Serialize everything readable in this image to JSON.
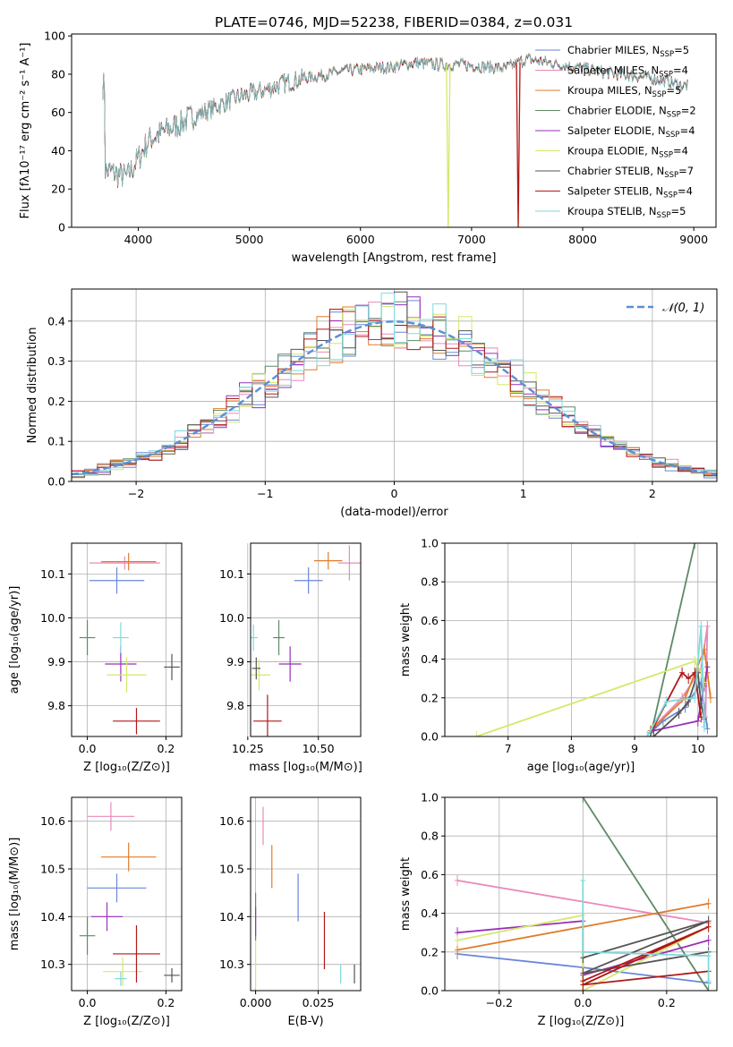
{
  "colors": {
    "chabrier_miles": "#6a87d8",
    "salpeter_miles": "#e88ab8",
    "kroupa_miles": "#e07c2a",
    "chabrier_elodie": "#5e8a65",
    "salpeter_elodie": "#9a2fb8",
    "kroupa_elodie": "#d4e86a",
    "chabrier_stelib": "#555555",
    "salpeter_stelib": "#b01818",
    "kroupa_stelib": "#7dd9dc",
    "gaussian": "#5b8fd6",
    "grid": "#b0b0b0"
  },
  "chart_data": [
    {
      "id": "spectrum",
      "type": "line",
      "title": "PLATE=0746, MJD=52238, FIBERID=0384, z=0.031",
      "xlabel": "wavelength [Angstrom, rest frame]",
      "ylabel": "Flux [fλ10⁻¹⁷ erg cm⁻² s⁻¹ A⁻¹]",
      "xlim": [
        3400,
        9200
      ],
      "ylim": [
        0,
        101
      ],
      "xticks": [
        4000,
        5000,
        6000,
        7000,
        8000,
        9000
      ],
      "yticks": [
        0,
        20,
        40,
        60,
        80,
        100
      ],
      "continuum": [
        [
          3700,
          30
        ],
        [
          3900,
          26
        ],
        [
          4000,
          36
        ],
        [
          4100,
          46
        ],
        [
          4300,
          52
        ],
        [
          4500,
          58
        ],
        [
          4700,
          63
        ],
        [
          4900,
          68
        ],
        [
          5100,
          71
        ],
        [
          5300,
          75
        ],
        [
          5500,
          78
        ],
        [
          5700,
          80
        ],
        [
          5900,
          82
        ],
        [
          6100,
          83
        ],
        [
          6300,
          84
        ],
        [
          6500,
          86
        ],
        [
          6700,
          85
        ],
        [
          6900,
          85
        ],
        [
          7100,
          84
        ],
        [
          7300,
          83
        ],
        [
          7500,
          88
        ],
        [
          7700,
          86
        ],
        [
          7900,
          84
        ],
        [
          8100,
          82
        ],
        [
          8300,
          80
        ],
        [
          8500,
          79
        ],
        [
          8700,
          77
        ],
        [
          8900,
          74
        ]
      ],
      "dropouts": [
        {
          "series": "Kroupa ELODIE",
          "x": 6790
        },
        {
          "series": "Salpeter STELIB",
          "x": 7420
        }
      ],
      "legend": [
        {
          "label": "Chabrier MILES, N",
          "sub": "SSP",
          "value": "=5",
          "color": "#6a87d8"
        },
        {
          "label": "Salpeter MILES, N",
          "sub": "SSP",
          "value": "=4",
          "color": "#e88ab8"
        },
        {
          "label": "Kroupa MILES, N",
          "sub": "SSP",
          "value": "=5",
          "color": "#e07c2a"
        },
        {
          "label": "Chabrier ELODIE, N",
          "sub": "SSP",
          "value": "=2",
          "color": "#5e8a65"
        },
        {
          "label": "Salpeter ELODIE, N",
          "sub": "SSP",
          "value": "=4",
          "color": "#9a2fb8"
        },
        {
          "label": "Kroupa ELODIE, N",
          "sub": "SSP",
          "value": "=4",
          "color": "#d4e86a"
        },
        {
          "label": "Chabrier STELIB, N",
          "sub": "SSP",
          "value": "=7",
          "color": "#555555"
        },
        {
          "label": "Salpeter STELIB, N",
          "sub": "SSP",
          "value": "=4",
          "color": "#b01818"
        },
        {
          "label": "Kroupa STELIB, N",
          "sub": "SSP",
          "value": "=5",
          "color": "#7dd9dc"
        }
      ]
    },
    {
      "id": "residuals",
      "type": "histogram",
      "xlabel": "(data-model)/error",
      "ylabel": "Normed distribution",
      "xlim": [
        -2.5,
        2.5
      ],
      "ylim": [
        0,
        0.48
      ],
      "xticks": [
        -2,
        -1,
        0,
        1,
        2
      ],
      "yticks": [
        0.0,
        0.1,
        0.2,
        0.3,
        0.4
      ],
      "grid": true,
      "legend": "$\\mathcal{N}(0, 1)$",
      "legend_text": "𝒩(0, 1)",
      "bins": 50
    },
    {
      "id": "age_vs_Z",
      "type": "errorbar",
      "xlabel": "Z [log₁₀(Z/Z⊙)]",
      "ylabel": "age  [log₁₀(age/yr)]",
      "xlim": [
        -0.04,
        0.24
      ],
      "ylim": [
        9.73,
        10.17
      ],
      "xticks": [
        0.0,
        0.2
      ],
      "yticks": [
        9.8,
        9.9,
        10.0,
        10.1
      ],
      "points": [
        {
          "series": "Chabrier MILES",
          "x": 0.075,
          "xerr": 0.07,
          "y": 10.085,
          "yerr": 0.03
        },
        {
          "series": "Salpeter MILES",
          "x": 0.095,
          "xerr": 0.09,
          "y": 10.125,
          "yerr": 0.015
        },
        {
          "series": "Kroupa MILES",
          "x": 0.105,
          "xerr": 0.07,
          "y": 10.128,
          "yerr": 0.02
        },
        {
          "series": "Chabrier ELODIE",
          "x": 0.0,
          "xerr": 0.02,
          "y": 9.955,
          "yerr": 0.04
        },
        {
          "series": "Salpeter ELODIE",
          "x": 0.085,
          "xerr": 0.04,
          "y": 9.895,
          "yerr": 0.04
        },
        {
          "series": "Kroupa ELODIE",
          "x": 0.1,
          "xerr": 0.05,
          "y": 9.87,
          "yerr": 0.04
        },
        {
          "series": "Chabrier STELIB",
          "x": 0.215,
          "xerr": 0.02,
          "y": 9.888,
          "yerr": 0.03
        },
        {
          "series": "Salpeter STELIB",
          "x": 0.125,
          "xerr": 0.06,
          "y": 9.765,
          "yerr": 0.03
        },
        {
          "series": "Kroupa STELIB",
          "x": 0.085,
          "xerr": 0.02,
          "y": 9.955,
          "yerr": 0.035
        }
      ]
    },
    {
      "id": "age_vs_mass",
      "type": "errorbar",
      "xlabel": "mass [log₁₀(M/M⊙)]",
      "xlim": [
        10.26,
        10.65
      ],
      "ylim": [
        9.73,
        10.17
      ],
      "xticks": [
        10.25,
        10.5
      ],
      "yticks": [
        9.8,
        9.9,
        10.0,
        10.1
      ],
      "points": [
        {
          "series": "Chabrier MILES",
          "x": 10.465,
          "xerr": 0.05,
          "y": 10.085,
          "yerr": 0.03
        },
        {
          "series": "Salpeter MILES",
          "x": 10.61,
          "xerr": 0.04,
          "y": 10.125,
          "yerr": 0.04
        },
        {
          "series": "Kroupa MILES",
          "x": 10.535,
          "xerr": 0.05,
          "y": 10.13,
          "yerr": 0.02
        },
        {
          "series": "Chabrier ELODIE",
          "x": 10.36,
          "xerr": 0.02,
          "y": 9.955,
          "yerr": 0.04
        },
        {
          "series": "Salpeter ELODIE",
          "x": 10.4,
          "xerr": 0.04,
          "y": 9.895,
          "yerr": 0.04
        },
        {
          "series": "Kroupa ELODIE",
          "x": 10.29,
          "xerr": 0.04,
          "y": 9.87,
          "yerr": 0.035
        },
        {
          "series": "Chabrier STELIB",
          "x": 10.28,
          "xerr": 0.015,
          "y": 9.885,
          "yerr": 0.025
        },
        {
          "series": "Salpeter STELIB",
          "x": 10.32,
          "xerr": 0.05,
          "y": 9.765,
          "yerr": 0.06
        },
        {
          "series": "Kroupa STELIB",
          "x": 10.27,
          "xerr": 0.015,
          "y": 9.955,
          "yerr": 0.03
        }
      ]
    },
    {
      "id": "weight_vs_age",
      "type": "line",
      "xlabel": "age  [log₁₀(age/yr)]",
      "ylabel": "mass weight",
      "xlim": [
        6.0,
        10.3
      ],
      "ylim": [
        0,
        1.0
      ],
      "xticks": [
        7,
        8,
        9,
        10
      ],
      "yticks": [
        0.0,
        0.2,
        0.4,
        0.6,
        0.8,
        1.0
      ],
      "series": [
        {
          "name": "Chabrier MILES",
          "points": [
            [
              9.25,
              0.02
            ],
            [
              9.45,
              0.08
            ],
            [
              9.8,
              0.15
            ],
            [
              10.05,
              0.28
            ],
            [
              10.15,
              0.04
            ]
          ]
        },
        {
          "name": "Salpeter MILES",
          "points": [
            [
              9.3,
              0.05
            ],
            [
              9.75,
              0.2
            ],
            [
              10.05,
              0.35
            ],
            [
              10.15,
              0.57
            ],
            [
              10.12,
              0.1
            ]
          ]
        },
        {
          "name": "Kroupa MILES",
          "points": [
            [
              9.25,
              0.03
            ],
            [
              9.8,
              0.2
            ],
            [
              10.1,
              0.45
            ],
            [
              10.15,
              0.33
            ],
            [
              10.2,
              0.2
            ]
          ]
        },
        {
          "name": "Chabrier ELODIE",
          "points": [
            [
              9.25,
              0.0
            ],
            [
              9.95,
              1.0
            ]
          ]
        },
        {
          "name": "Salpeter ELODIE",
          "points": [
            [
              9.3,
              0.03
            ],
            [
              10.0,
              0.08
            ],
            [
              10.1,
              0.26
            ],
            [
              10.15,
              0.36
            ]
          ]
        },
        {
          "name": "Kroupa ELODIE",
          "points": [
            [
              6.5,
              0.0
            ],
            [
              9.95,
              0.39
            ],
            [
              10.05,
              0.33
            ],
            [
              10.1,
              0.28
            ]
          ]
        },
        {
          "name": "Chabrier STELIB",
          "points": [
            [
              9.3,
              0.0
            ],
            [
              9.7,
              0.12
            ],
            [
              9.85,
              0.18
            ],
            [
              10.0,
              0.33
            ],
            [
              10.05,
              0.17
            ],
            [
              10.1,
              0.09
            ]
          ]
        },
        {
          "name": "Salpeter STELIB",
          "points": [
            [
              9.3,
              0.05
            ],
            [
              9.75,
              0.33
            ],
            [
              9.85,
              0.3
            ],
            [
              9.95,
              0.33
            ],
            [
              10.05,
              0.1
            ]
          ]
        },
        {
          "name": "Kroupa STELIB",
          "points": [
            [
              9.2,
              0.0
            ],
            [
              9.5,
              0.18
            ],
            [
              9.95,
              0.2
            ],
            [
              10.05,
              0.57
            ],
            [
              10.1,
              0.05
            ]
          ]
        }
      ]
    },
    {
      "id": "mass_vs_Z",
      "type": "errorbar",
      "xlabel": "Z [log₁₀(Z/Z⊙)]",
      "ylabel": "mass [log₁₀(M/M⊙)]",
      "xlim": [
        -0.04,
        0.24
      ],
      "ylim": [
        10.245,
        10.65
      ],
      "xticks": [
        0.0,
        0.2
      ],
      "yticks": [
        10.3,
        10.4,
        10.5,
        10.6
      ],
      "points": [
        {
          "series": "Chabrier MILES",
          "x": 0.075,
          "xerr": 0.075,
          "y": 10.46,
          "yerr": 0.03
        },
        {
          "series": "Salpeter MILES",
          "x": 0.06,
          "xerr": 0.06,
          "y": 10.61,
          "yerr": 0.03
        },
        {
          "series": "Kroupa MILES",
          "x": 0.105,
          "xerr": 0.07,
          "y": 10.525,
          "yerr": 0.03
        },
        {
          "series": "Chabrier ELODIE",
          "x": 0.0,
          "xerr": 0.02,
          "y": 10.36,
          "yerr": 0.04
        },
        {
          "series": "Salpeter ELODIE",
          "x": 0.05,
          "xerr": 0.04,
          "y": 10.4,
          "yerr": 0.03
        },
        {
          "series": "Kroupa ELODIE",
          "x": 0.09,
          "xerr": 0.05,
          "y": 10.285,
          "yerr": 0.03
        },
        {
          "series": "Chabrier STELIB",
          "x": 0.215,
          "xerr": 0.02,
          "y": 10.277,
          "yerr": 0.015
        },
        {
          "series": "Salpeter STELIB",
          "x": 0.125,
          "xerr": 0.06,
          "y": 10.322,
          "yerr": 0.06
        },
        {
          "series": "Kroupa STELIB",
          "x": 0.085,
          "xerr": 0.015,
          "y": 10.27,
          "yerr": 0.015
        }
      ]
    },
    {
      "id": "mass_vs_ebv",
      "type": "errorbar",
      "xlabel": "E(B-V)",
      "xlim": [
        -0.002,
        0.042
      ],
      "ylim": [
        10.245,
        10.65
      ],
      "xticks": [
        0.0,
        0.025
      ],
      "yticks": [
        10.3,
        10.4,
        10.5,
        10.6
      ],
      "points": [
        {
          "series": "Chabrier MILES",
          "x": 0.017,
          "xerr": 0.0,
          "y": 10.44,
          "yerr": 0.05
        },
        {
          "series": "Salpeter MILES",
          "x": 0.003,
          "xerr": 0.0,
          "y": 10.59,
          "yerr": 0.04
        },
        {
          "series": "Kroupa MILES",
          "x": 0.0065,
          "xerr": 0.0,
          "y": 10.505,
          "yerr": 0.045
        },
        {
          "series": "Chabrier ELODIE",
          "x": 0.0,
          "xerr": 0.0,
          "y": 10.4,
          "yerr": 0.05
        },
        {
          "series": "Salpeter ELODIE",
          "x": 0.0,
          "xerr": 0.0,
          "y": 10.39,
          "yerr": 0.03
        },
        {
          "series": "Kroupa ELODIE",
          "x": 0.0,
          "xerr": 0.0,
          "y": 10.3,
          "yerr": 0.05
        },
        {
          "series": "Chabrier STELIB",
          "x": 0.0395,
          "xerr": 0.0,
          "y": 10.28,
          "yerr": 0.02
        },
        {
          "series": "Salpeter STELIB",
          "x": 0.0275,
          "xerr": 0.0,
          "y": 10.35,
          "yerr": 0.06
        },
        {
          "series": "Kroupa STELIB",
          "x": 0.034,
          "xerr": 0.0,
          "y": 10.28,
          "yerr": 0.02
        }
      ]
    },
    {
      "id": "weight_vs_Z",
      "type": "line",
      "xlabel": "Z [log₁₀(Z/Z⊙)]",
      "ylabel": "mass weight",
      "xlim": [
        -0.33,
        0.32
      ],
      "ylim": [
        0,
        1.0
      ],
      "xticks": [
        -0.2,
        0.0,
        0.2
      ],
      "yticks": [
        0.0,
        0.2,
        0.4,
        0.6,
        0.8,
        1.0
      ],
      "series": [
        {
          "name": "Chabrier MILES",
          "points": [
            [
              -0.3,
              0.19
            ],
            [
              0.0,
              0.12
            ],
            [
              0.3,
              0.04
            ]
          ]
        },
        {
          "name": "Salpeter MILES",
          "points": [
            [
              -0.3,
              0.57
            ],
            [
              0.3,
              0.35
            ]
          ]
        },
        {
          "name": "Kroupa MILES",
          "points": [
            [
              -0.3,
              0.21
            ],
            [
              0.0,
              0.33
            ],
            [
              0.3,
              0.45
            ]
          ]
        },
        {
          "name": "Chabrier ELODIE",
          "points": [
            [
              0.0,
              1.0
            ],
            [
              0.3,
              0.0
            ]
          ]
        },
        {
          "name": "Salpeter ELODIE",
          "points": [
            [
              -0.3,
              0.3
            ],
            [
              0.0,
              0.36
            ],
            [
              0.0,
              0.08
            ],
            [
              0.3,
              0.26
            ]
          ]
        },
        {
          "name": "Kroupa ELODIE",
          "points": [
            [
              -0.3,
              0.26
            ],
            [
              0.0,
              0.39
            ],
            [
              0.0,
              0.0
            ],
            [
              0.3,
              0.33
            ]
          ]
        },
        {
          "name": "Chabrier STELIB",
          "points": [
            [
              0.0,
              0.17
            ],
            [
              0.3,
              0.36
            ],
            [
              0.0,
              0.09
            ],
            [
              0.3,
              0.2
            ]
          ]
        },
        {
          "name": "Salpeter STELIB",
          "points": [
            [
              0.0,
              0.05
            ],
            [
              0.3,
              0.33
            ],
            [
              0.0,
              0.03
            ],
            [
              0.3,
              0.1
            ]
          ]
        },
        {
          "name": "Kroupa STELIB",
          "points": [
            [
              0.0,
              0.57
            ],
            [
              0.0,
              0.2
            ],
            [
              0.3,
              0.18
            ],
            [
              0.3,
              0.05
            ]
          ]
        }
      ]
    }
  ]
}
